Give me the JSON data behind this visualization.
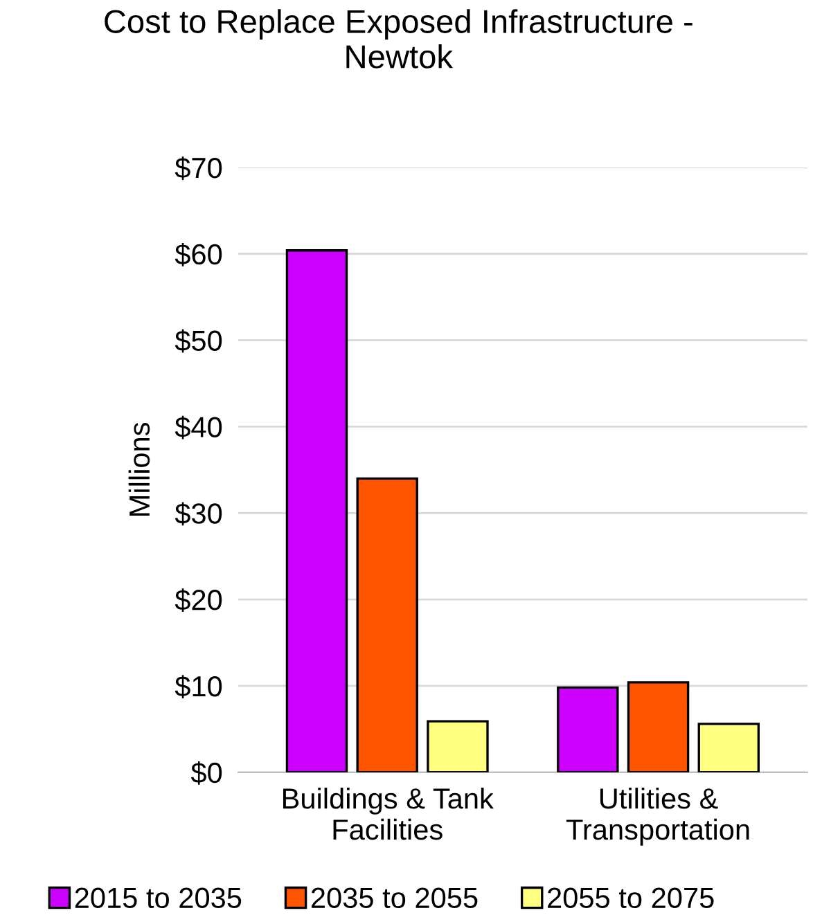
{
  "chart_data": {
    "type": "bar",
    "title": "Cost to Replace Exposed Infrastructure -\nNewtok",
    "ylabel": "Millions",
    "categories": [
      "Buildings & Tank\nFacilities",
      "Utilities &\nTransportation"
    ],
    "series": [
      {
        "name": "2015 to 2035",
        "color": "#cc00ff",
        "values": [
          60.4,
          9.8
        ]
      },
      {
        "name": "2035 to 2055",
        "color": "#ff5500",
        "values": [
          34.0,
          10.4
        ]
      },
      {
        "name": "2055 to 2075",
        "color": "#ffff80",
        "values": [
          5.9,
          5.6
        ]
      }
    ],
    "ylim": [
      0,
      70
    ],
    "yticks": [
      {
        "value": 0,
        "label": "$0"
      },
      {
        "value": 10,
        "label": "$10"
      },
      {
        "value": 20,
        "label": "$20"
      },
      {
        "value": 30,
        "label": "$30"
      },
      {
        "value": 40,
        "label": "$40"
      },
      {
        "value": 50,
        "label": "$50"
      },
      {
        "value": 60,
        "label": "$60"
      },
      {
        "value": 70,
        "label": "$70"
      }
    ],
    "grid": "y",
    "legend": "bottom"
  }
}
